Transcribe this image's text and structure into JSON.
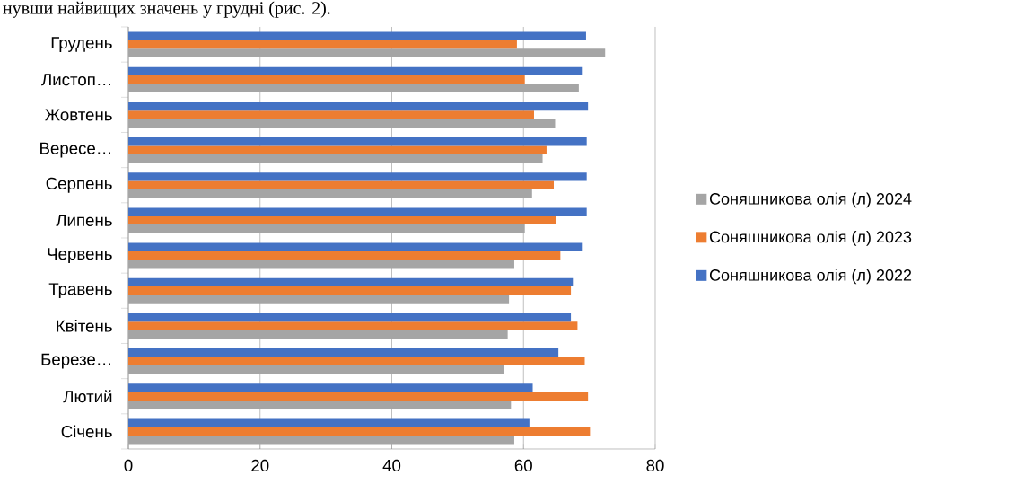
{
  "chart_data": {
    "type": "bar",
    "orientation": "horizontal",
    "annotations": [
      "нувши найвищих значень у грудні (рис. 2)."
    ],
    "categories": [
      "Грудень",
      "Листоп…",
      "Жовтень",
      "Вересе…",
      "Серпень",
      "Липень",
      "Червень",
      "Травень",
      "Квітень",
      "Березе…",
      "Лютий",
      "Січень"
    ],
    "series": [
      {
        "name": "Соняшникова олія (л) 2024",
        "color": "#a5a5a5",
        "values": [
          72.4,
          68.4,
          64.8,
          62.9,
          61.3,
          60.2,
          58.6,
          57.8,
          57.6,
          57.1,
          58.1,
          58.6
        ]
      },
      {
        "name": "Соняшникова олія (л) 2023",
        "color": "#ed7d31",
        "values": [
          59.0,
          60.2,
          61.6,
          63.5,
          64.6,
          64.9,
          65.6,
          67.2,
          68.2,
          69.3,
          69.8,
          70.1
        ]
      },
      {
        "name": "Соняшникова олія (л) 2022",
        "color": "#4472c4",
        "values": [
          69.5,
          69.0,
          69.8,
          69.6,
          69.6,
          69.6,
          69.0,
          67.5,
          67.2,
          65.3,
          61.4,
          60.9
        ]
      }
    ],
    "xlim": [
      0,
      80
    ],
    "xticks": [
      0,
      20,
      40,
      60,
      80
    ],
    "grid": "x",
    "legend": "right"
  }
}
